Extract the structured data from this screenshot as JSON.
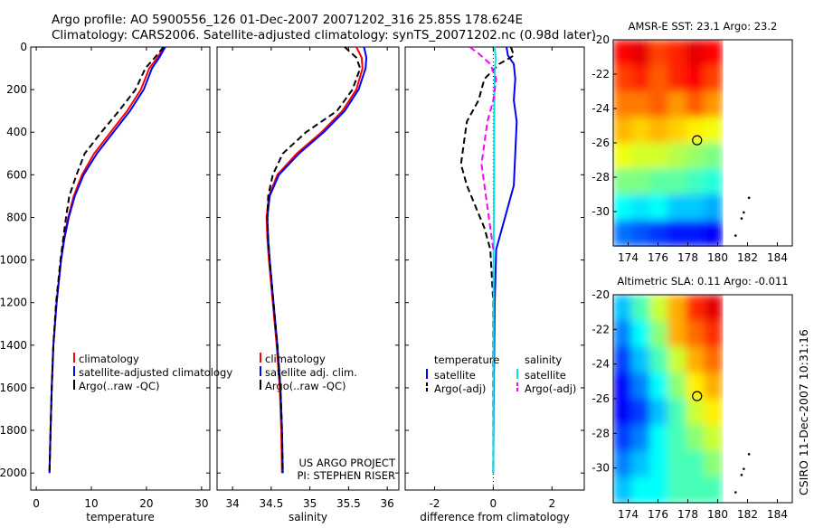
{
  "header": {
    "line1": "Argo profile: AO 5900556_126 01-Dec-2007 20071202_316 25.85S 178.624E",
    "line2": "Climatology: CARS2006. Satellite-adjusted climatology: synTS_20071202.nc (0.98d later)"
  },
  "stamp": "CSIRO 11-Dec-2007 10:31:16",
  "credits": [
    "US ARGO PROJECT",
    "PI: STEPHEN RISER"
  ],
  "colors": {
    "climatology": "#ff0000",
    "satellite": "#0000ff",
    "argo": "#000000",
    "sat_salinity": "#00e5e5",
    "argo_salinity": "#ff00ff"
  },
  "chart_data": [
    {
      "type": "line",
      "id": "temperature",
      "xlabel": "temperature",
      "ylabel": "",
      "xlim": [
        -1,
        31.5
      ],
      "ylim": [
        2080,
        0
      ],
      "xticks": [
        0,
        10,
        20,
        30
      ],
      "yticks": [
        0,
        200,
        400,
        600,
        800,
        1000,
        1200,
        1400,
        1600,
        1800,
        2000
      ],
      "legend": {
        "position": "center-right",
        "entries": [
          "climatology",
          "satellite-adjusted climatology",
          "Argo(..raw -QC)"
        ]
      },
      "series": [
        {
          "name": "climatology",
          "color": "#ff0000",
          "style": "solid",
          "depth": [
            0,
            50,
            100,
            200,
            300,
            400,
            500,
            600,
            700,
            800,
            900,
            1000,
            1200,
            1400,
            1600,
            1800,
            2000
          ],
          "values": [
            23.2,
            22.0,
            20.5,
            19.0,
            16.5,
            13.5,
            10.5,
            8.3,
            6.8,
            5.8,
            5.0,
            4.5,
            3.7,
            3.1,
            2.8,
            2.6,
            2.4
          ]
        },
        {
          "name": "satellite-adjusted climatology",
          "color": "#0000ff",
          "style": "solid",
          "depth": [
            0,
            50,
            100,
            200,
            300,
            400,
            500,
            600,
            700,
            800,
            900,
            1000,
            1200,
            1400,
            1600,
            1800,
            2000
          ],
          "values": [
            23.4,
            22.3,
            21.0,
            19.5,
            17.0,
            14.0,
            11.0,
            8.6,
            7.0,
            5.9,
            5.1,
            4.5,
            3.7,
            3.1,
            2.8,
            2.6,
            2.4
          ]
        },
        {
          "name": "Argo(..raw -QC)",
          "color": "#000000",
          "style": "dash",
          "depth": [
            0,
            50,
            100,
            200,
            300,
            400,
            500,
            600,
            700,
            800,
            900,
            1000,
            1200,
            1400,
            1600,
            1800,
            2000
          ],
          "values": [
            23.1,
            21.5,
            19.8,
            18.0,
            15.0,
            11.8,
            8.8,
            7.3,
            6.0,
            5.4,
            4.9,
            4.4,
            3.6,
            3.1,
            2.8,
            2.6,
            2.4
          ]
        }
      ]
    },
    {
      "type": "line",
      "id": "salinity",
      "xlabel": "salinity",
      "ylabel": "",
      "xlim": [
        33.8,
        36.15
      ],
      "ylim": [
        2080,
        0
      ],
      "xticks": [
        34,
        34.5,
        35,
        35.5,
        36
      ],
      "xtick_labels": [
        "34",
        "34.5",
        "35",
        "35.5",
        "36"
      ],
      "yticks": [
        0,
        200,
        400,
        600,
        800,
        1000,
        1200,
        1400,
        1600,
        1800,
        2000
      ],
      "legend": {
        "position": "center-right",
        "entries": [
          "climatology",
          "satellite adj. clim.",
          "Argo(..raw -QC)"
        ]
      },
      "series": [
        {
          "name": "climatology",
          "color": "#ff0000",
          "style": "solid",
          "depth": [
            0,
            50,
            100,
            200,
            300,
            400,
            500,
            600,
            700,
            800,
            900,
            1000,
            1200,
            1400,
            1600,
            1800,
            2000
          ],
          "values": [
            35.6,
            35.67,
            35.68,
            35.6,
            35.42,
            35.15,
            34.83,
            34.58,
            34.47,
            34.44,
            34.45,
            34.47,
            34.52,
            34.57,
            34.61,
            34.63,
            34.64
          ]
        },
        {
          "name": "satellite adj. clim.",
          "color": "#0000ff",
          "style": "solid",
          "depth": [
            0,
            50,
            100,
            200,
            300,
            400,
            500,
            600,
            700,
            800,
            900,
            1000,
            1200,
            1400,
            1600,
            1800,
            2000
          ],
          "values": [
            35.7,
            35.73,
            35.72,
            35.63,
            35.45,
            35.18,
            34.86,
            34.6,
            34.48,
            34.45,
            34.46,
            34.48,
            34.53,
            34.58,
            34.62,
            34.64,
            34.65
          ]
        },
        {
          "name": "Argo(..raw -QC)",
          "color": "#000000",
          "style": "dash",
          "depth": [
            0,
            50,
            100,
            200,
            300,
            400,
            500,
            600,
            700,
            800,
            900,
            1000,
            1200,
            1400,
            1600,
            1800,
            2000
          ],
          "values": [
            35.45,
            35.6,
            35.65,
            35.55,
            35.35,
            34.95,
            34.65,
            34.52,
            34.46,
            34.45,
            34.46,
            34.48,
            34.53,
            34.58,
            34.62,
            34.64,
            34.65
          ]
        }
      ]
    },
    {
      "type": "line",
      "id": "difference",
      "xlabel": "difference from climatology",
      "ylabel": "",
      "xlim": [
        -3,
        3.1
      ],
      "ylim": [
        2080,
        0
      ],
      "xticks": [
        -2,
        0,
        2
      ],
      "yticks": [
        0,
        200,
        400,
        600,
        800,
        1000,
        1200,
        1400,
        1600,
        1800,
        2000
      ],
      "legend": {
        "position": "center",
        "groups": [
          {
            "title": "temperature",
            "entries": [
              "satellite",
              "Argo(-adj)"
            ]
          },
          {
            "title": "salinity",
            "entries": [
              "satellite",
              "Argo(-adj)"
            ]
          }
        ]
      },
      "series": [
        {
          "name": "temperature satellite",
          "color": "#0000ff",
          "style": "solid",
          "depth": [
            0,
            40,
            80,
            150,
            250,
            350,
            500,
            650,
            800,
            950,
            1200,
            1600,
            2000
          ],
          "values": [
            0.45,
            0.5,
            0.7,
            0.75,
            0.7,
            0.8,
            0.75,
            0.7,
            0.4,
            0.1,
            0.05,
            0.02,
            0.0
          ]
        },
        {
          "name": "temperature Argo(-adj)",
          "color": "#000000",
          "style": "dash",
          "depth": [
            0,
            40,
            80,
            150,
            250,
            350,
            450,
            550,
            650,
            750,
            850,
            950,
            1200,
            1600,
            2000
          ],
          "values": [
            0.6,
            0.7,
            0.2,
            -0.3,
            -0.5,
            -0.9,
            -1.0,
            -1.1,
            -0.9,
            -0.6,
            -0.3,
            -0.1,
            0.0,
            0.0,
            0.0
          ]
        },
        {
          "name": "salinity satellite",
          "color": "#00e5e5",
          "style": "solid",
          "depth": [
            0,
            50,
            100,
            200,
            400,
            600,
            800,
            1000,
            1200,
            1600,
            2000
          ],
          "values": [
            0.05,
            0.08,
            0.06,
            0.04,
            0.03,
            0.03,
            0.02,
            0.01,
            0.01,
            0.01,
            0.0
          ]
        },
        {
          "name": "salinity Argo(-adj)",
          "color": "#ff00ff",
          "style": "dash",
          "depth": [
            0,
            30,
            80,
            150,
            250,
            350,
            450,
            550,
            650,
            750,
            850,
            950
          ],
          "values": [
            -0.8,
            -0.5,
            -0.1,
            0.1,
            0.0,
            -0.2,
            -0.3,
            -0.4,
            -0.3,
            -0.2,
            -0.1,
            0.0
          ]
        }
      ]
    },
    {
      "type": "heatmap",
      "id": "sst-map",
      "title": "AMSR-E SST: 23.1  Argo: 23.2",
      "xlabel": "",
      "ylabel": "",
      "xlim": [
        173,
        185
      ],
      "ylim": [
        -32,
        -20
      ],
      "xticks": [
        174,
        176,
        178,
        180,
        182,
        184
      ],
      "yticks": [
        -20,
        -22,
        -24,
        -26,
        -28,
        -30
      ],
      "data_extent_x": [
        173,
        180.3
      ],
      "value_rows_north_to_south": [
        [
          23.8,
          23.9,
          23.6,
          23.7,
          23.9,
          23.8
        ],
        [
          23.6,
          23.7,
          23.5,
          23.7,
          23.8,
          23.6
        ],
        [
          23.4,
          23.4,
          23.5,
          23.3,
          23.5,
          23.3
        ],
        [
          23.2,
          23.1,
          23.2,
          23.1,
          23.0,
          22.9
        ],
        [
          22.9,
          22.8,
          22.8,
          22.7,
          22.6,
          22.5
        ],
        [
          22.5,
          22.5,
          22.4,
          22.4,
          22.3,
          22.2
        ],
        [
          22.1,
          22.0,
          22.1,
          21.9,
          21.9,
          21.8
        ],
        [
          21.6,
          21.5,
          21.4,
          21.3,
          21.3,
          21.2
        ]
      ],
      "argo_position": [
        178.62,
        -25.85
      ]
    },
    {
      "type": "heatmap",
      "id": "sla-map",
      "title": "Altimetric SLA: 0.11  Argo: -0.011",
      "xlabel": "",
      "ylabel": "",
      "xlim": [
        173,
        185
      ],
      "ylim": [
        -32,
        -20
      ],
      "xticks": [
        174,
        176,
        178,
        180,
        182,
        184
      ],
      "yticks": [
        -20,
        -22,
        -24,
        -26,
        -28,
        -30
      ],
      "data_extent_x": [
        173,
        180.3
      ],
      "value_rows_north_to_south": [
        [
          0.02,
          0.06,
          0.1,
          0.14,
          0.18,
          0.2
        ],
        [
          0.0,
          0.04,
          0.08,
          0.14,
          0.16,
          0.18
        ],
        [
          -0.02,
          0.02,
          0.06,
          0.1,
          0.14,
          0.16
        ],
        [
          -0.04,
          0.0,
          0.04,
          0.08,
          0.12,
          0.14
        ],
        [
          -0.04,
          -0.02,
          0.02,
          0.06,
          0.1,
          0.12
        ],
        [
          -0.02,
          0.0,
          0.04,
          0.06,
          0.08,
          0.1
        ],
        [
          0.0,
          0.02,
          0.04,
          0.06,
          0.06,
          0.08
        ],
        [
          0.02,
          0.04,
          0.04,
          0.06,
          0.06,
          0.06
        ]
      ],
      "argo_position": [
        178.62,
        -25.85
      ]
    }
  ]
}
